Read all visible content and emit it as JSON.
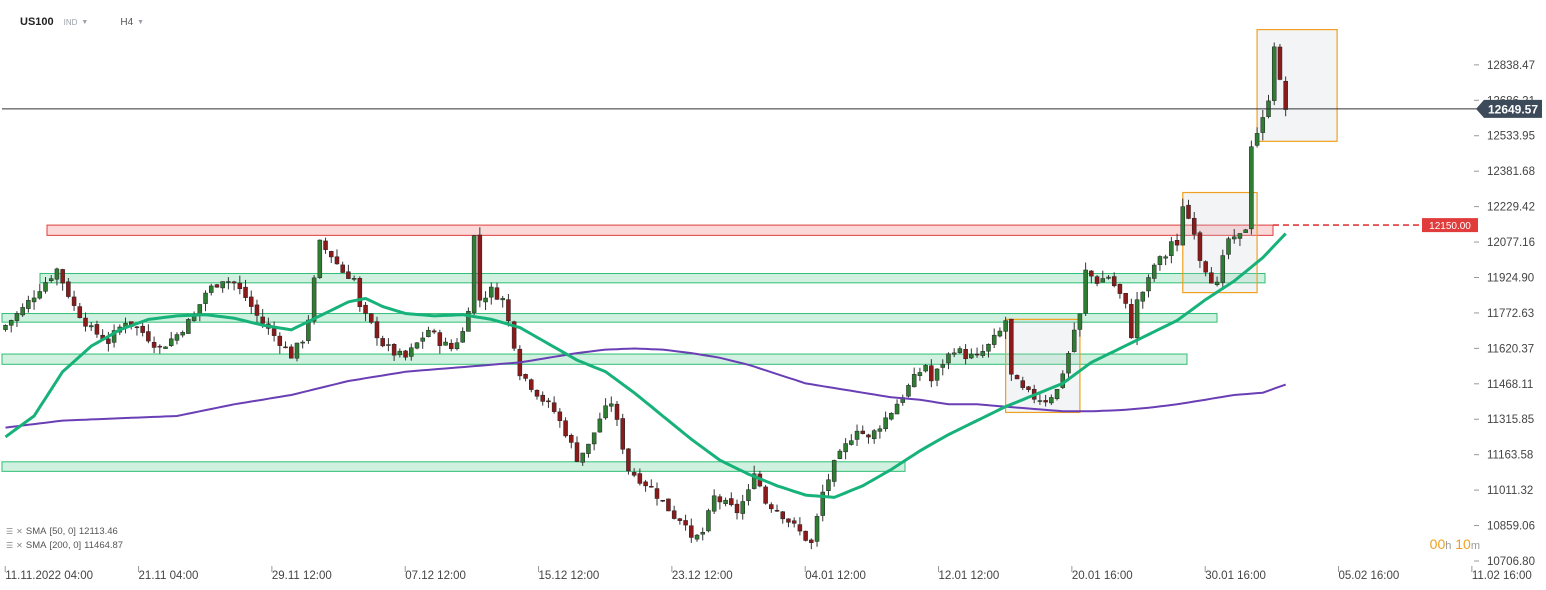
{
  "header": {
    "symbol": "US100",
    "sub": "IND",
    "timeframe": "H4"
  },
  "legend": [
    {
      "name": "SMA",
      "params": "[50, 0]",
      "value": "12113.46"
    },
    {
      "name": "SMA",
      "params": "[200, 0]",
      "value": "11464.87"
    }
  ],
  "timer": {
    "h": "00",
    "m": "10"
  },
  "colors": {
    "up": "#2e7d32",
    "down": "#8b1a1a",
    "sma50": "#17b27a",
    "sma200": "#6a3fb5",
    "resistance": "#e03c3c",
    "zone": "#2ebf74",
    "highlight": "#f0a020"
  },
  "chart_data": {
    "type": "candlestick",
    "symbol": "US100",
    "timeframe": "H4",
    "ylim": [
      10706.8,
      12990
    ],
    "y_ticks": [
      "12838.47",
      "12686.21",
      "12533.95",
      "12381.68",
      "12229.42",
      "12077.16",
      "11924.90",
      "11772.63",
      "11620.37",
      "11468.11",
      "11315.85",
      "11163.58",
      "11011.32",
      "10859.06",
      "10706.80"
    ],
    "x_ticks": [
      "11.11.2022  04:00",
      "21.11  04:00",
      "29.11  12:00",
      "07.12  12:00",
      "15.12  12:00",
      "23.12  12:00",
      "04.01  12:00",
      "12.01  12:00",
      "20.01  16:00",
      "30.01  16:00",
      "05.02  16:00",
      "11.02  16:00"
    ],
    "last_price": "12649.57",
    "resistance_level": "12150.00",
    "resistance_value": 12150,
    "resistance_zone": [
      12106,
      12150
    ],
    "support_zones": [
      [
        11902,
        11942
      ],
      [
        11733,
        11770
      ],
      [
        11552,
        11596
      ],
      [
        11092,
        11133
      ]
    ],
    "close_path": [
      [
        0,
        11720
      ],
      [
        3,
        11790
      ],
      [
        6,
        11880
      ],
      [
        9,
        11960
      ],
      [
        12,
        11800
      ],
      [
        15,
        11700
      ],
      [
        18,
        11650
      ],
      [
        21,
        11740
      ],
      [
        24,
        11690
      ],
      [
        27,
        11620
      ],
      [
        30,
        11680
      ],
      [
        33,
        11760
      ],
      [
        35,
        11860
      ],
      [
        38,
        11920
      ],
      [
        40,
        11900
      ],
      [
        42,
        11840
      ],
      [
        44,
        11760
      ],
      [
        46,
        11700
      ],
      [
        48,
        11650
      ],
      [
        50,
        11590
      ],
      [
        52,
        11660
      ],
      [
        53,
        11750
      ],
      [
        55,
        12070
      ],
      [
        57,
        12020
      ],
      [
        59,
        11950
      ],
      [
        61,
        11920
      ],
      [
        62,
        11790
      ],
      [
        64,
        11720
      ],
      [
        66,
        11640
      ],
      [
        68,
        11600
      ],
      [
        70,
        11580
      ],
      [
        72,
        11640
      ],
      [
        74,
        11700
      ],
      [
        76,
        11650
      ],
      [
        78,
        11620
      ],
      [
        80,
        11690
      ],
      [
        81,
        11800
      ],
      [
        82,
        12100
      ],
      [
        83,
        11830
      ],
      [
        85,
        11870
      ],
      [
        87,
        11830
      ],
      [
        89,
        11640
      ],
      [
        90,
        11520
      ],
      [
        92,
        11460
      ],
      [
        94,
        11400
      ],
      [
        96,
        11350
      ],
      [
        98,
        11260
      ],
      [
        100,
        11150
      ],
      [
        102,
        11200
      ],
      [
        104,
        11320
      ],
      [
        106,
        11390
      ],
      [
        107,
        11300
      ],
      [
        109,
        11100
      ],
      [
        111,
        11060
      ],
      [
        113,
        11020
      ],
      [
        115,
        10960
      ],
      [
        117,
        10900
      ],
      [
        119,
        10880
      ],
      [
        120,
        10790
      ],
      [
        122,
        10830
      ],
      [
        124,
        10980
      ],
      [
        126,
        10950
      ],
      [
        128,
        10920
      ],
      [
        130,
        11000
      ],
      [
        131,
        11100
      ],
      [
        133,
        10960
      ],
      [
        135,
        10930
      ],
      [
        137,
        10880
      ],
      [
        139,
        10830
      ],
      [
        141,
        10780
      ],
      [
        143,
        11000
      ],
      [
        145,
        11120
      ],
      [
        147,
        11200
      ],
      [
        149,
        11280
      ],
      [
        151,
        11230
      ],
      [
        153,
        11290
      ],
      [
        155,
        11350
      ],
      [
        157,
        11420
      ],
      [
        159,
        11490
      ],
      [
        161,
        11550
      ],
      [
        162,
        11480
      ],
      [
        164,
        11560
      ],
      [
        166,
        11620
      ],
      [
        168,
        11590
      ],
      [
        170,
        11580
      ],
      [
        172,
        11630
      ],
      [
        174,
        11690
      ],
      [
        175,
        11740
      ],
      [
        176,
        11500
      ],
      [
        178,
        11440
      ],
      [
        180,
        11410
      ],
      [
        182,
        11400
      ],
      [
        184,
        11440
      ],
      [
        186,
        11600
      ],
      [
        187,
        11700
      ],
      [
        188,
        11760
      ],
      [
        189,
        11950
      ],
      [
        191,
        11910
      ],
      [
        193,
        11930
      ],
      [
        195,
        11850
      ],
      [
        196,
        11800
      ],
      [
        197,
        11680
      ],
      [
        198,
        11820
      ],
      [
        200,
        11910
      ],
      [
        201,
        11980
      ],
      [
        203,
        12020
      ],
      [
        204,
        12080
      ],
      [
        205,
        12050
      ],
      [
        206,
        12240
      ],
      [
        207,
        12180
      ],
      [
        208,
        12130
      ],
      [
        209,
        12010
      ],
      [
        211,
        11920
      ],
      [
        212,
        11890
      ],
      [
        213,
        12000
      ],
      [
        214,
        12090
      ],
      [
        215,
        12080
      ],
      [
        216,
        12100
      ],
      [
        217,
        12140
      ],
      [
        218,
        12500
      ],
      [
        219,
        12550
      ],
      [
        220,
        12600
      ],
      [
        221,
        12700
      ],
      [
        222,
        12930
      ],
      [
        223,
        12760
      ],
      [
        224,
        12649.57
      ]
    ],
    "sma50": [
      [
        0,
        11240
      ],
      [
        5,
        11330
      ],
      [
        10,
        11520
      ],
      [
        15,
        11630
      ],
      [
        20,
        11700
      ],
      [
        25,
        11745
      ],
      [
        30,
        11760
      ],
      [
        35,
        11765
      ],
      [
        40,
        11750
      ],
      [
        45,
        11720
      ],
      [
        50,
        11700
      ],
      [
        55,
        11760
      ],
      [
        60,
        11820
      ],
      [
        63,
        11835
      ],
      [
        66,
        11800
      ],
      [
        70,
        11770
      ],
      [
        75,
        11760
      ],
      [
        80,
        11765
      ],
      [
        85,
        11745
      ],
      [
        90,
        11710
      ],
      [
        95,
        11640
      ],
      [
        100,
        11570
      ],
      [
        105,
        11520
      ],
      [
        110,
        11430
      ],
      [
        115,
        11330
      ],
      [
        120,
        11230
      ],
      [
        125,
        11140
      ],
      [
        130,
        11080
      ],
      [
        135,
        11030
      ],
      [
        140,
        10990
      ],
      [
        145,
        10980
      ],
      [
        150,
        11030
      ],
      [
        155,
        11100
      ],
      [
        160,
        11180
      ],
      [
        165,
        11250
      ],
      [
        170,
        11310
      ],
      [
        175,
        11370
      ],
      [
        180,
        11420
      ],
      [
        185,
        11470
      ],
      [
        190,
        11560
      ],
      [
        195,
        11620
      ],
      [
        200,
        11680
      ],
      [
        205,
        11740
      ],
      [
        210,
        11830
      ],
      [
        215,
        11910
      ],
      [
        220,
        12010
      ],
      [
        224,
        12113.46
      ]
    ],
    "sma200": [
      [
        0,
        11280
      ],
      [
        10,
        11310
      ],
      [
        20,
        11320
      ],
      [
        30,
        11330
      ],
      [
        40,
        11380
      ],
      [
        50,
        11420
      ],
      [
        60,
        11480
      ],
      [
        70,
        11520
      ],
      [
        80,
        11540
      ],
      [
        90,
        11560
      ],
      [
        95,
        11580
      ],
      [
        100,
        11600
      ],
      [
        105,
        11615
      ],
      [
        110,
        11620
      ],
      [
        115,
        11615
      ],
      [
        120,
        11600
      ],
      [
        125,
        11580
      ],
      [
        130,
        11550
      ],
      [
        135,
        11510
      ],
      [
        140,
        11470
      ],
      [
        145,
        11450
      ],
      [
        150,
        11430
      ],
      [
        155,
        11410
      ],
      [
        160,
        11400
      ],
      [
        165,
        11380
      ],
      [
        170,
        11380
      ],
      [
        175,
        11370
      ],
      [
        180,
        11360
      ],
      [
        185,
        11350
      ],
      [
        190,
        11350
      ],
      [
        195,
        11355
      ],
      [
        200,
        11365
      ],
      [
        205,
        11380
      ],
      [
        210,
        11400
      ],
      [
        215,
        11420
      ],
      [
        220,
        11430
      ],
      [
        224,
        11464.87
      ]
    ],
    "highlight_boxes": [
      {
        "from": 175,
        "to": 188,
        "low": 11345,
        "high": 11745
      },
      {
        "from": 206,
        "to": 219,
        "low": 11860,
        "high": 12290
      },
      {
        "from": 219,
        "to": 233,
        "low": 12510,
        "high": 12990
      }
    ],
    "candle_count": 225,
    "bars_per_tick": 23.33,
    "first_tick_bar": 1
  }
}
